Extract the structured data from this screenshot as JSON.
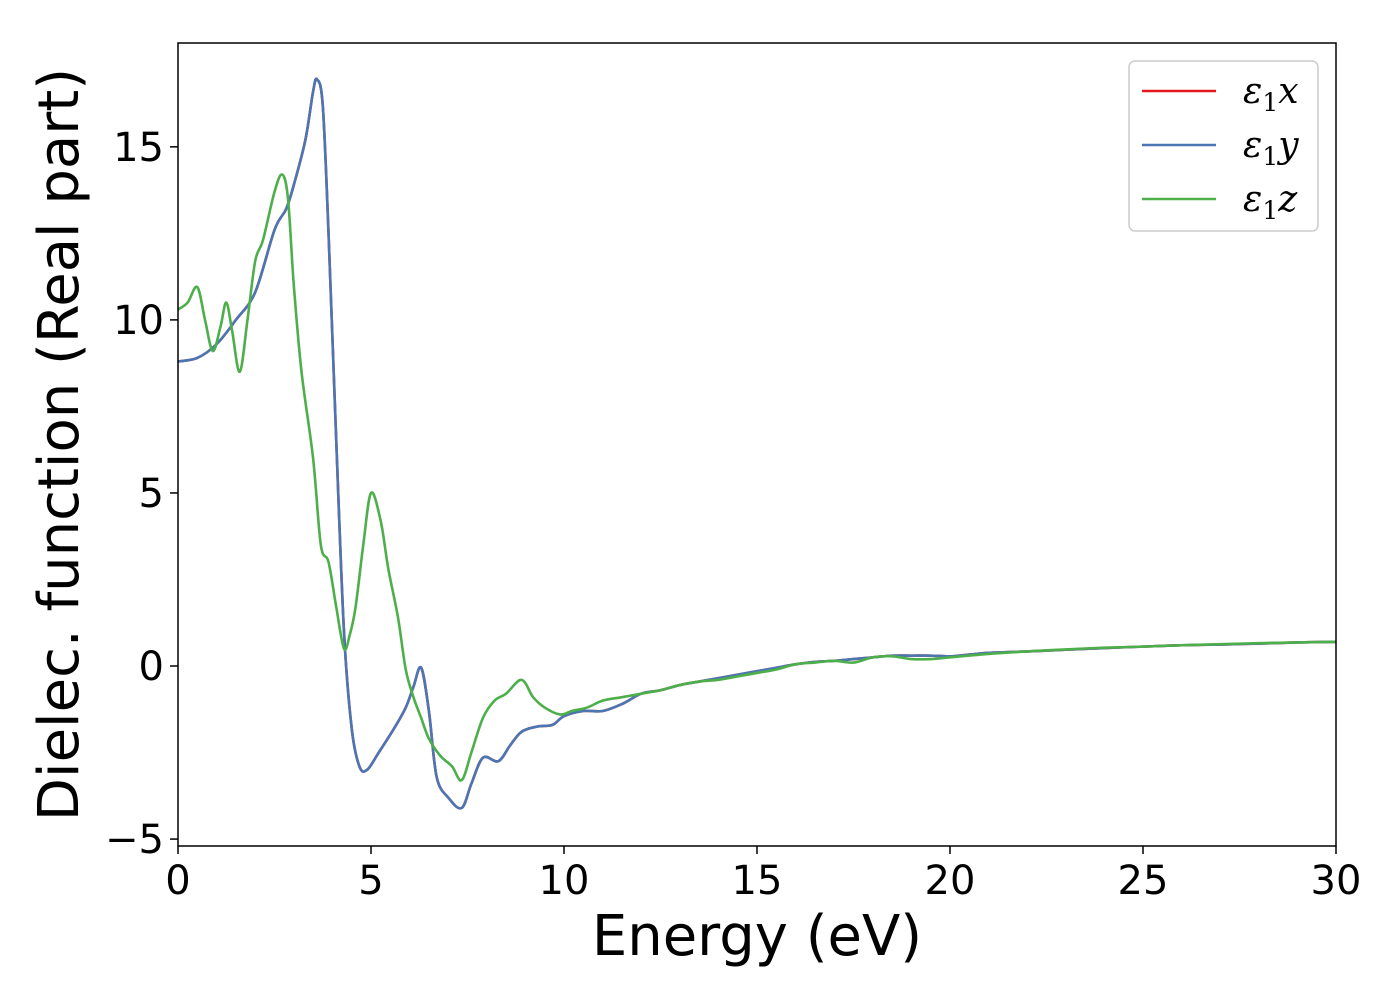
{
  "chart_data": {
    "type": "line",
    "title": "",
    "xlabel": "Energy (eV)",
    "ylabel": "Dielec. function (Real part)",
    "xlim": [
      0,
      30
    ],
    "ylim": [
      -5.2,
      18
    ],
    "xticks": [
      0,
      5,
      10,
      15,
      20,
      25,
      30
    ],
    "yticks": [
      -5,
      0,
      5,
      10,
      15
    ],
    "ytick_labels": [
      "−5",
      "0",
      "5",
      "10",
      "15"
    ],
    "grid": false,
    "legend_position": "top-right",
    "series": [
      {
        "name": "ε1x",
        "legend_main": "ε",
        "legend_sub": "1",
        "legend_var": "x",
        "color": "#e41a1c",
        "x": [
          0,
          0.5,
          1.0,
          1.5,
          2.0,
          2.5,
          2.8,
          3.0,
          3.3,
          3.5,
          3.6,
          3.75,
          3.9,
          4.1,
          4.3,
          4.5,
          4.7,
          4.9,
          5.2,
          5.6,
          5.9,
          6.1,
          6.3,
          6.5,
          6.7,
          7.0,
          7.35,
          7.6,
          7.9,
          8.3,
          8.6,
          8.9,
          9.3,
          9.7,
          10.0,
          10.5,
          11.0,
          11.5,
          12.0,
          12.5,
          13.0,
          13.5,
          14.0,
          14.5,
          15.0,
          15.5,
          16.0,
          16.5,
          17.0,
          17.5,
          18.0,
          18.5,
          19.0,
          19.5,
          20.0,
          20.5,
          21.0,
          22.0,
          23.0,
          24.0,
          25.0,
          26.0,
          27.0,
          28.0,
          29.0,
          30.0
        ],
        "values": [
          8.8,
          8.9,
          9.3,
          10.0,
          10.8,
          12.6,
          13.2,
          13.9,
          15.2,
          16.6,
          16.95,
          16.2,
          12.5,
          6.5,
          1.0,
          -1.8,
          -2.9,
          -3.0,
          -2.5,
          -1.8,
          -1.2,
          -0.6,
          -0.05,
          -1.3,
          -3.2,
          -3.8,
          -4.1,
          -3.4,
          -2.65,
          -2.75,
          -2.3,
          -1.9,
          -1.75,
          -1.7,
          -1.45,
          -1.3,
          -1.3,
          -1.1,
          -0.8,
          -0.7,
          -0.55,
          -0.45,
          -0.35,
          -0.25,
          -0.15,
          -0.05,
          0.05,
          0.12,
          0.15,
          0.2,
          0.25,
          0.3,
          0.3,
          0.3,
          0.28,
          0.33,
          0.38,
          0.42,
          0.47,
          0.52,
          0.56,
          0.6,
          0.62,
          0.65,
          0.68,
          0.7
        ]
      },
      {
        "name": "ε1y",
        "legend_main": "ε",
        "legend_sub": "1",
        "legend_var": "y",
        "color": "#4a77b4",
        "x": [
          0,
          0.5,
          1.0,
          1.5,
          2.0,
          2.5,
          2.8,
          3.0,
          3.3,
          3.5,
          3.6,
          3.75,
          3.9,
          4.1,
          4.3,
          4.5,
          4.7,
          4.9,
          5.2,
          5.6,
          5.9,
          6.1,
          6.3,
          6.5,
          6.7,
          7.0,
          7.35,
          7.6,
          7.9,
          8.3,
          8.6,
          8.9,
          9.3,
          9.7,
          10.0,
          10.5,
          11.0,
          11.5,
          12.0,
          12.5,
          13.0,
          13.5,
          14.0,
          14.5,
          15.0,
          15.5,
          16.0,
          16.5,
          17.0,
          17.5,
          18.0,
          18.5,
          19.0,
          19.5,
          20.0,
          20.5,
          21.0,
          22.0,
          23.0,
          24.0,
          25.0,
          26.0,
          27.0,
          28.0,
          29.0,
          30.0
        ],
        "values": [
          8.8,
          8.9,
          9.3,
          10.0,
          10.8,
          12.6,
          13.2,
          13.9,
          15.2,
          16.6,
          16.95,
          16.2,
          12.5,
          6.5,
          1.0,
          -1.8,
          -2.9,
          -3.0,
          -2.5,
          -1.8,
          -1.2,
          -0.6,
          -0.05,
          -1.3,
          -3.2,
          -3.8,
          -4.1,
          -3.4,
          -2.65,
          -2.75,
          -2.3,
          -1.9,
          -1.75,
          -1.7,
          -1.45,
          -1.3,
          -1.3,
          -1.1,
          -0.8,
          -0.7,
          -0.55,
          -0.45,
          -0.35,
          -0.25,
          -0.15,
          -0.05,
          0.05,
          0.12,
          0.15,
          0.2,
          0.25,
          0.3,
          0.3,
          0.3,
          0.28,
          0.33,
          0.38,
          0.42,
          0.47,
          0.52,
          0.56,
          0.6,
          0.62,
          0.65,
          0.68,
          0.7
        ]
      },
      {
        "name": "ε1z",
        "legend_main": "ε",
        "legend_sub": "1",
        "legend_var": "z",
        "color": "#4daf4a",
        "x": [
          0,
          0.25,
          0.5,
          0.7,
          0.9,
          1.1,
          1.25,
          1.4,
          1.6,
          1.8,
          2.0,
          2.2,
          2.5,
          2.7,
          2.85,
          3.0,
          3.2,
          3.5,
          3.7,
          3.9,
          4.1,
          4.3,
          4.45,
          4.6,
          4.8,
          5.0,
          5.25,
          5.45,
          5.7,
          5.9,
          6.1,
          6.3,
          6.5,
          6.8,
          7.1,
          7.35,
          7.6,
          7.9,
          8.2,
          8.5,
          8.9,
          9.2,
          9.5,
          9.9,
          10.2,
          10.6,
          11.0,
          11.5,
          12.0,
          12.5,
          13.0,
          13.5,
          14.0,
          14.5,
          15.0,
          15.5,
          16.0,
          16.5,
          17.0,
          17.5,
          18.0,
          18.5,
          19.0,
          19.5,
          20.0,
          21.0,
          22.0,
          23.0,
          24.0,
          25.0,
          26.0,
          27.0,
          28.0,
          29.0,
          30.0
        ],
        "values": [
          10.3,
          10.5,
          10.95,
          10.0,
          9.1,
          9.8,
          10.5,
          9.7,
          8.5,
          10.0,
          11.7,
          12.3,
          13.7,
          14.2,
          13.5,
          11.0,
          8.5,
          6.0,
          3.5,
          3.0,
          1.7,
          0.5,
          0.9,
          1.7,
          3.5,
          5.0,
          4.2,
          2.8,
          1.4,
          -0.1,
          -0.9,
          -1.5,
          -2.1,
          -2.6,
          -2.9,
          -3.3,
          -2.5,
          -1.5,
          -1.0,
          -0.8,
          -0.4,
          -0.9,
          -1.2,
          -1.4,
          -1.3,
          -1.2,
          -1.0,
          -0.9,
          -0.8,
          -0.7,
          -0.55,
          -0.45,
          -0.4,
          -0.3,
          -0.2,
          -0.1,
          0.05,
          0.1,
          0.15,
          0.1,
          0.25,
          0.28,
          0.2,
          0.2,
          0.25,
          0.35,
          0.42,
          0.48,
          0.53,
          0.56,
          0.6,
          0.63,
          0.66,
          0.68,
          0.7
        ]
      }
    ]
  }
}
